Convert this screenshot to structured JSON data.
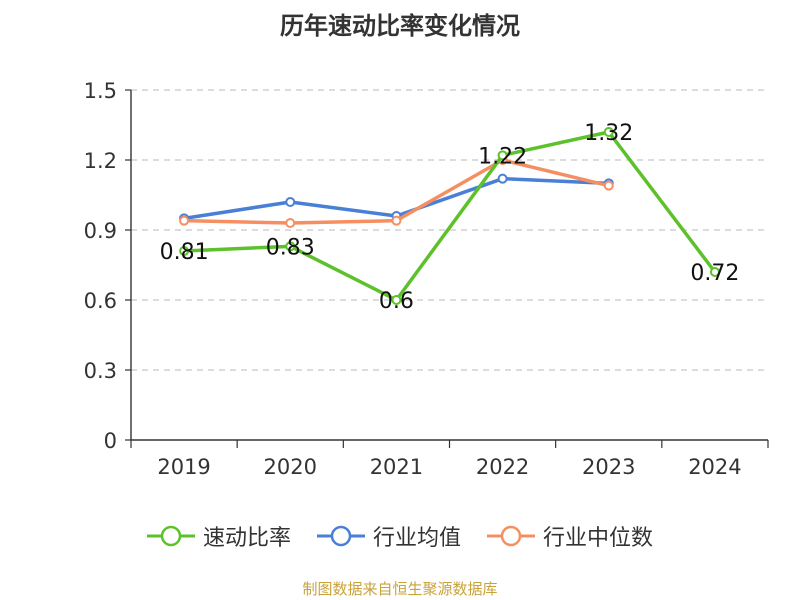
{
  "colors": {
    "quick_ratio": "#5cc12a",
    "industry_avg": "#4a7fd6",
    "industry_median": "#f58f61",
    "axis": "#333333",
    "grid": "#c8c8c8",
    "source": "#c9a23a"
  },
  "chart_data": {
    "type": "line",
    "title": "历年速动比率变化情况",
    "categories": [
      "2019",
      "2020",
      "2021",
      "2022",
      "2023",
      "2024"
    ],
    "ylim": [
      0,
      1.5
    ],
    "yticks": [
      0,
      0.3,
      0.6,
      0.9,
      1.2,
      1.5
    ],
    "ytick_labels": [
      "0",
      "0.3",
      "0.6",
      "0.9",
      "1.2",
      "1.5"
    ],
    "grid": true,
    "legend_position": "bottom-center",
    "series": [
      {
        "key": "quick_ratio",
        "name": "速动比率",
        "values": [
          0.81,
          0.83,
          0.6,
          1.22,
          1.32,
          0.72
        ],
        "labels": [
          "0.81",
          "0.83",
          "0.6",
          "1.22",
          "1.32",
          "0.72"
        ]
      },
      {
        "key": "industry_avg",
        "name": "行业均值",
        "values": [
          0.95,
          1.02,
          0.96,
          1.12,
          1.1,
          null
        ]
      },
      {
        "key": "industry_median",
        "name": "行业中位数",
        "values": [
          0.94,
          0.93,
          0.94,
          1.2,
          1.09,
          null
        ]
      }
    ]
  },
  "legend": {
    "items": [
      "速动比率",
      "行业均值",
      "行业中位数"
    ]
  },
  "source": "制图数据来自恒生聚源数据库"
}
